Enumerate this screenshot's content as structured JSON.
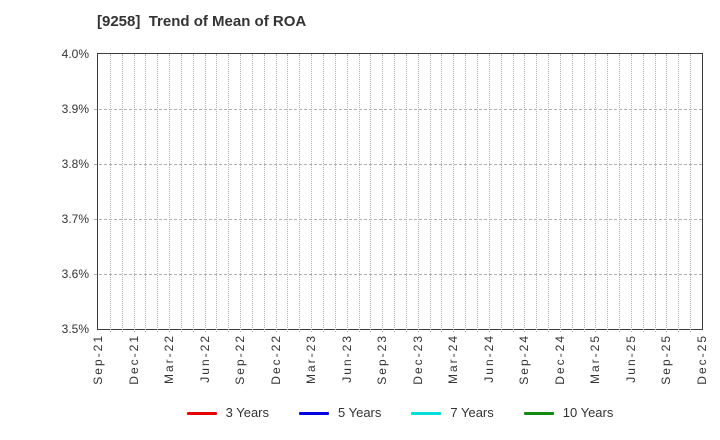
{
  "chart_data": {
    "type": "line",
    "title": "[9258]  Trend of Mean of ROA",
    "ticker": "9258",
    "xlabel": "",
    "ylabel": "",
    "ylim": [
      3.5,
      4.0
    ],
    "y_unit": "%",
    "y_tick_labels": [
      "4.0%",
      "3.9%",
      "3.8%",
      "3.7%",
      "3.6%",
      "3.5%"
    ],
    "x_tick_labels": [
      "Sep-21",
      "Dec-21",
      "Mar-22",
      "Jun-22",
      "Sep-22",
      "Dec-22",
      "Mar-23",
      "Jun-23",
      "Sep-23",
      "Dec-23",
      "Mar-24",
      "Jun-24",
      "Sep-24",
      "Dec-24",
      "Mar-25",
      "Jun-25",
      "Sep-25",
      "Dec-25"
    ],
    "x_months_between_labels": 3,
    "x_total_month_intervals": 51,
    "grid": true,
    "legend_position": "bottom",
    "series": [
      {
        "name": "3 Years",
        "color": "#e60000",
        "values": []
      },
      {
        "name": "5 Years",
        "color": "#0000e0",
        "values": []
      },
      {
        "name": "7 Years",
        "color": "#00dddd",
        "values": []
      },
      {
        "name": "10 Years",
        "color": "#128a12",
        "values": []
      }
    ]
  }
}
